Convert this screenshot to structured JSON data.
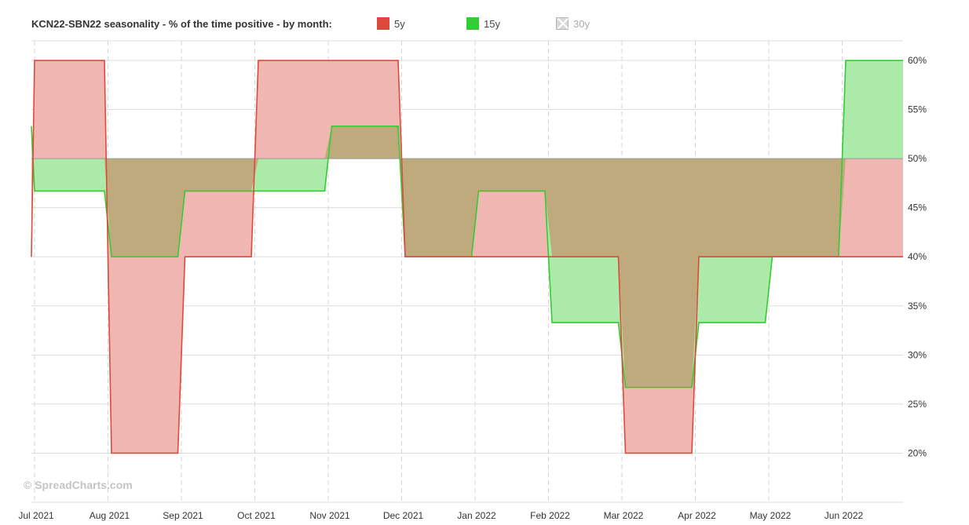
{
  "title": "KCN22-SBN22 seasonality - % of the time positive - by month:",
  "legend": [
    {
      "label": "5y",
      "color": "#e0483c",
      "active": true
    },
    {
      "label": "15y",
      "color": "#33cc33",
      "active": true
    },
    {
      "label": "30y",
      "color": "#cccccc",
      "active": false
    }
  ],
  "watermark": "© SpreadCharts.com",
  "colors": {
    "series_5y_line": "#e0483c",
    "series_5y_fill": "#f0b7b2",
    "series_15y_line": "#33cc33",
    "series_15y_fill": "#abeaa8",
    "overlap_fill": "#bfaa7e",
    "grid": "#dddddd"
  },
  "chart_data": {
    "type": "area",
    "title": "KCN22-SBN22 seasonality - % of the time positive - by month:",
    "xlabel": "",
    "ylabel": "",
    "baseline": 50,
    "ylim": [
      15,
      62
    ],
    "y_ticks": [
      20,
      25,
      30,
      35,
      40,
      45,
      50,
      55,
      60
    ],
    "y_tick_labels": [
      "20%",
      "25%",
      "30%",
      "35%",
      "40%",
      "45%",
      "50%",
      "55%",
      "60%"
    ],
    "categories": [
      "Jul 2021",
      "Aug 2021",
      "Sep 2021",
      "Oct 2021",
      "Nov 2021",
      "Dec 2021",
      "Jan 2022",
      "Feb 2022",
      "Mar 2022",
      "Apr 2022",
      "May 2022",
      "Jun 2022"
    ],
    "series": [
      {
        "name": "5y",
        "values": [
          60,
          20,
          40,
          60,
          60,
          40,
          40,
          40,
          20,
          40,
          40,
          40
        ]
      },
      {
        "name": "15y",
        "values": [
          46.7,
          40,
          46.7,
          46.7,
          53.3,
          40,
          46.7,
          33.3,
          26.7,
          33.3,
          40,
          60
        ]
      }
    ],
    "grid": true,
    "legend_position": "top",
    "y_axis_side": "right"
  }
}
